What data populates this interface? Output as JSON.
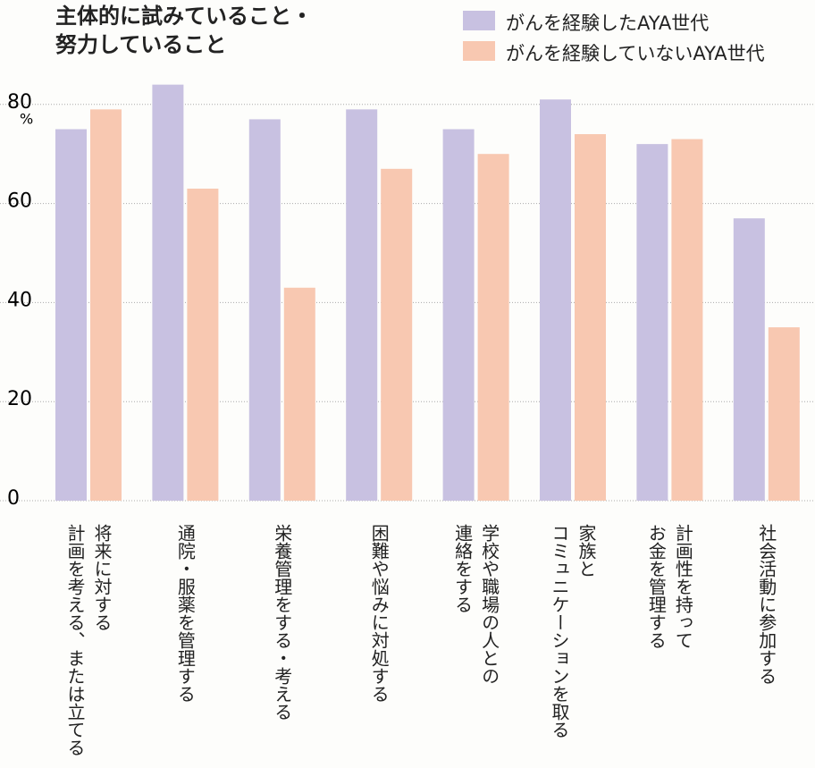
{
  "chart_data": {
    "type": "bar",
    "title": "主体的に試みていること・\n努力していること",
    "y_unit": "%",
    "categories": [
      "将来に対する\n計画を考える、または立てる",
      "通院・服薬を管理する",
      "栄養管理をする・考える",
      "困難や悩みに対処する",
      "学校や職場の人との\n連絡をする",
      "家族と\nコミュニケーションを取る",
      "計画性を持って\nお金を管理する",
      "社会活動に参加する"
    ],
    "series": [
      {
        "name": "がんを経験したAYA世代",
        "color": "#c8c1e1",
        "values": [
          75,
          84,
          77,
          79,
          75,
          81,
          72,
          57
        ]
      },
      {
        "name": "がんを経験していないAYA世代",
        "color": "#f8c8b1",
        "values": [
          79,
          63,
          43,
          67,
          70,
          74,
          73,
          35
        ]
      }
    ],
    "ylim": [
      0,
      85
    ],
    "yticks": [
      0,
      20,
      40,
      60,
      80
    ],
    "grid": true
  }
}
